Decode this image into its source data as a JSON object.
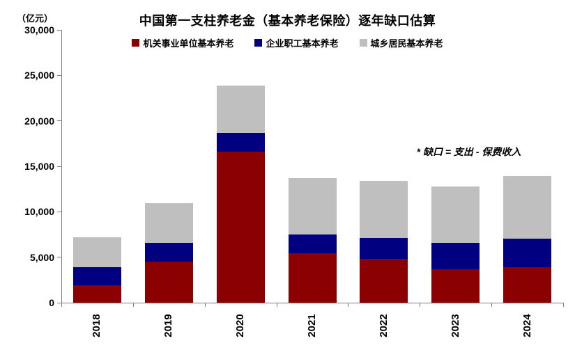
{
  "chart_data": {
    "type": "bar",
    "stacked": true,
    "title": "中国第一支柱养老金（基本养老保险）逐年缺口估算",
    "unit_label": "（亿元）",
    "annotation": "* 缺口 = 支出 - 保费收入",
    "categories": [
      "2018",
      "2019",
      "2020",
      "2021",
      "2022",
      "2023",
      "2024"
    ],
    "series": [
      {
        "name": "机关事业单位基本养老",
        "color": "#8B0000",
        "values": [
          1900,
          4500,
          16600,
          5400,
          4800,
          3700,
          3900
        ]
      },
      {
        "name": "企业职工基本养老",
        "color": "#000080",
        "values": [
          2000,
          2100,
          2100,
          2100,
          2300,
          2900,
          3100
        ]
      },
      {
        "name": "城乡居民基本养老",
        "color": "#BFBFBF",
        "values": [
          3300,
          4400,
          5200,
          6200,
          6300,
          6200,
          6900
        ]
      }
    ],
    "stack_totals": [
      7200,
      11000,
      23900,
      13700,
      13400,
      12800,
      13900
    ],
    "ylim": [
      0,
      30000
    ],
    "ytick_step": 5000,
    "ytick_labels": [
      "0",
      "5,000",
      "10,000",
      "15,000",
      "20,000",
      "25,000",
      "30,000"
    ],
    "legend_position": "top",
    "grid": false,
    "axis_color": "#808080",
    "xlabel": "",
    "ylabel": "（亿元）"
  }
}
